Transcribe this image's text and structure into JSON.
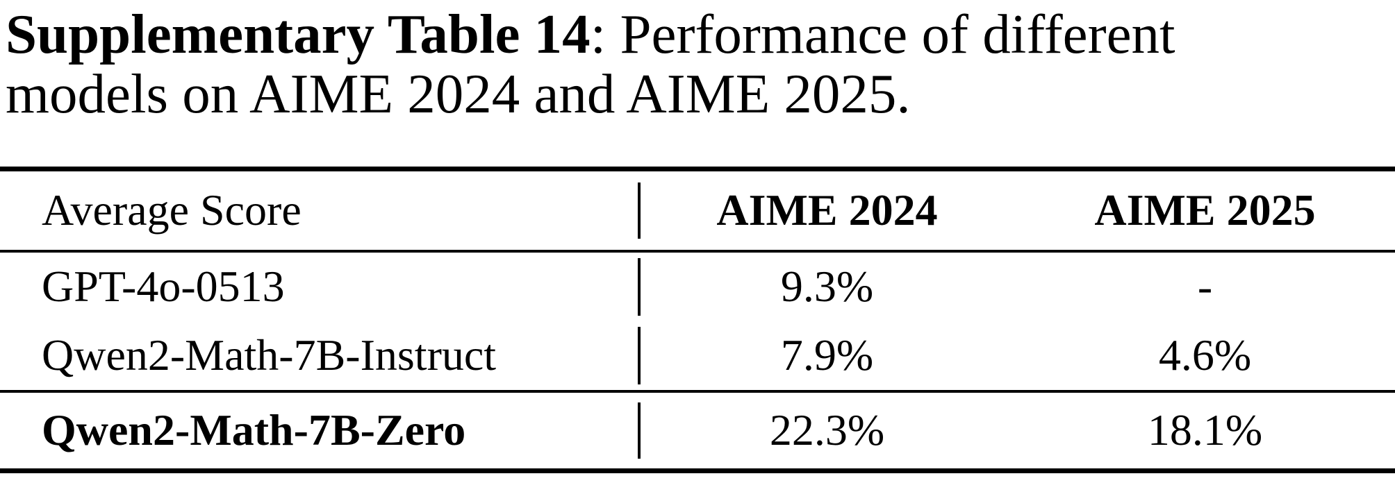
{
  "title": {
    "bold": "Supplementary Table 14",
    "rest_line1": ": Performance of different",
    "line2": "models on AIME 2024 and AIME 2025."
  },
  "table": {
    "columns": [
      "Average Score",
      "AIME 2024",
      "AIME 2025"
    ],
    "rows": [
      {
        "model": "GPT-4o-0513",
        "aime_2024": "9.3%",
        "aime_2025": "-"
      },
      {
        "model": "Qwen2-Math-7B-Instruct",
        "aime_2024": "7.9%",
        "aime_2025": "4.6%"
      },
      {
        "model": "Qwen2-Math-7B-Zero",
        "aime_2024": "22.3%",
        "aime_2025": "18.1%"
      }
    ]
  },
  "colors": {
    "text": "#000000",
    "background": "#ffffff",
    "rule": "#000000"
  }
}
